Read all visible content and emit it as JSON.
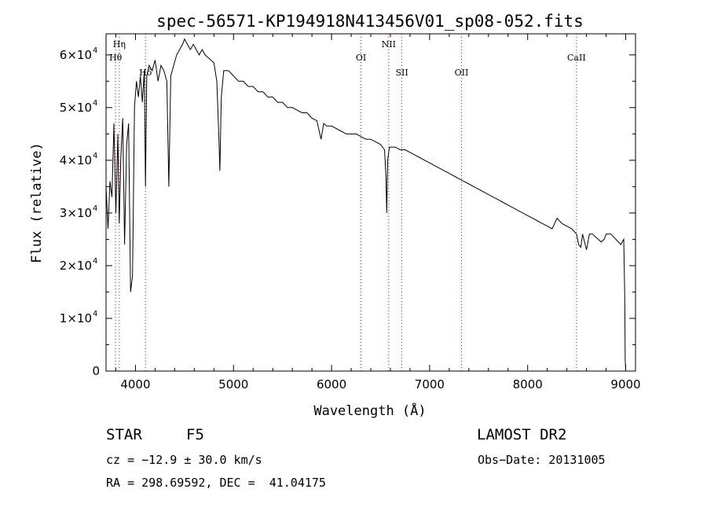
{
  "chart_data": {
    "type": "line",
    "title": "spec-56571-KP194918N413456V01_sp08-052.fits",
    "xlabel": "Wavelength (Å)",
    "ylabel": "Flux (relative)",
    "xlim": [
      3700,
      9100
    ],
    "ylim": [
      0,
      64000
    ],
    "x_ticks": [
      4000,
      5000,
      6000,
      7000,
      8000,
      9000
    ],
    "y_ticks": [
      {
        "value": 0,
        "mantissa": "0",
        "exponent": ""
      },
      {
        "value": 10000,
        "mantissa": "1×10",
        "exponent": "4"
      },
      {
        "value": 20000,
        "mantissa": "2×10",
        "exponent": "4"
      },
      {
        "value": 30000,
        "mantissa": "3×10",
        "exponent": "4"
      },
      {
        "value": 40000,
        "mantissa": "4×10",
        "exponent": "4"
      },
      {
        "value": 50000,
        "mantissa": "5×10",
        "exponent": "4"
      },
      {
        "value": 60000,
        "mantissa": "6×10",
        "exponent": "4"
      }
    ],
    "grid": false,
    "series": [
      {
        "x": [
          3700,
          3720,
          3740,
          3760,
          3780,
          3800,
          3820,
          3835,
          3850,
          3870,
          3889,
          3910,
          3930,
          3950,
          3970,
          3990,
          4010,
          4030,
          4050,
          4070,
          4090,
          4102,
          4115,
          4140,
          4170,
          4200,
          4230,
          4260,
          4290,
          4320,
          4340,
          4360,
          4390,
          4420,
          4450,
          4480,
          4500,
          4530,
          4560,
          4590,
          4620,
          4650,
          4680,
          4710,
          4740,
          4770,
          4800,
          4830,
          4850,
          4861,
          4875,
          4900,
          4950,
          5000,
          5050,
          5100,
          5150,
          5200,
          5250,
          5300,
          5350,
          5400,
          5450,
          5500,
          5550,
          5600,
          5650,
          5700,
          5750,
          5800,
          5850,
          5893,
          5920,
          5950,
          6000,
          6050,
          6100,
          6150,
          6200,
          6250,
          6300,
          6350,
          6400,
          6450,
          6500,
          6540,
          6555,
          6563,
          6572,
          6590,
          6620,
          6650,
          6700,
          6750,
          6800,
          6850,
          6900,
          6950,
          7000,
          7050,
          7100,
          7150,
          7200,
          7250,
          7300,
          7350,
          7400,
          7450,
          7500,
          7550,
          7600,
          7650,
          7700,
          7750,
          7800,
          7850,
          7900,
          7950,
          8000,
          8050,
          8100,
          8150,
          8200,
          8250,
          8300,
          8350,
          8400,
          8450,
          8498,
          8520,
          8542,
          8560,
          8600,
          8630,
          8662,
          8690,
          8720,
          8750,
          8780,
          8800,
          8850,
          8900,
          8950,
          8980,
          8990,
          8995,
          9000
        ],
        "y": [
          35000,
          27000,
          36000,
          33000,
          47000,
          30000,
          45000,
          28000,
          40000,
          48000,
          24000,
          43000,
          47000,
          15000,
          18000,
          50000,
          55000,
          52000,
          56000,
          51000,
          57000,
          35000,
          56000,
          58000,
          57000,
          59000,
          55000,
          58000,
          57000,
          55000,
          35000,
          56000,
          58000,
          60000,
          61000,
          62000,
          63000,
          62000,
          61000,
          62000,
          61000,
          60000,
          61000,
          60000,
          59500,
          59000,
          58500,
          55000,
          45000,
          38000,
          52000,
          57000,
          57000,
          56000,
          55000,
          55000,
          54000,
          54000,
          53000,
          53000,
          52000,
          52000,
          51000,
          51000,
          50000,
          50000,
          49500,
          49000,
          49000,
          48000,
          47500,
          44000,
          47000,
          46500,
          46500,
          46000,
          45500,
          45000,
          45000,
          45000,
          44500,
          44000,
          44000,
          43500,
          43000,
          42000,
          37000,
          30000,
          40000,
          42500,
          42500,
          42500,
          42000,
          42000,
          41500,
          41000,
          40500,
          40000,
          39500,
          39000,
          38500,
          38000,
          37500,
          37000,
          36500,
          36000,
          35500,
          35000,
          34500,
          34000,
          33500,
          33000,
          32500,
          32000,
          31500,
          31000,
          30500,
          30000,
          29500,
          29000,
          28500,
          28000,
          27500,
          27000,
          29000,
          28000,
          27500,
          27000,
          26000,
          24000,
          23500,
          26000,
          23000,
          26000,
          26000,
          25500,
          25000,
          24500,
          25000,
          26000,
          26000,
          25000,
          24000,
          25000,
          14000,
          2000,
          0
        ]
      }
    ],
    "lines": [
      {
        "label": "Hη",
        "x": 3835,
        "label_row": 0
      },
      {
        "label": "Hθ",
        "x": 3797,
        "label_row": 1
      },
      {
        "label": "Hδ",
        "x": 4102,
        "label_row": 2
      },
      {
        "label": "NII",
        "x": 6583,
        "label_row": 0
      },
      {
        "label": "OI",
        "x": 6300,
        "label_row": 1
      },
      {
        "label": "SII",
        "x": 6717,
        "label_row": 2
      },
      {
        "label": "OII",
        "x": 7325,
        "label_row": 2
      },
      {
        "label": "CaII",
        "x": 8498,
        "label_row": 1
      }
    ],
    "line_color": "#d00000",
    "spectrum_color": "#000000"
  },
  "info": {
    "class_label": "STAR",
    "subclass_label": "F5",
    "redshift": "cz = −12.9 ± 30.0 km/s",
    "coords": "RA = 298.69592, DEC =  41.04175",
    "survey": "LAMOST DR2",
    "obs_date": "Obs−Date: 20131005"
  }
}
